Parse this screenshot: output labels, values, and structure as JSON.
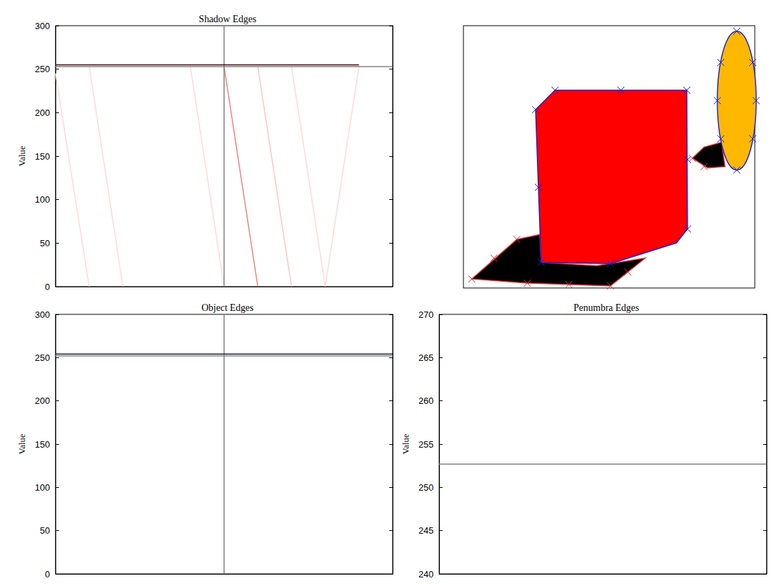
{
  "chart_data": [
    {
      "type": "line",
      "title": "Shadow Edges",
      "y_label": "Value",
      "xlim": [
        0,
        100
      ],
      "ylim": [
        0,
        300
      ],
      "yticks": [
        0,
        50,
        100,
        150,
        200,
        250,
        300
      ],
      "tick_labels": "y",
      "grid": false,
      "series": [
        {
          "color": "#ffd9d9",
          "x": [
            0,
            10
          ],
          "values": [
            245,
            0
          ]
        },
        {
          "color": "#ffd9d9",
          "x": [
            10,
            20
          ],
          "values": [
            253,
            0
          ]
        },
        {
          "color": "#ffd9d9",
          "x": [
            40,
            50
          ],
          "values": [
            253,
            0
          ]
        },
        {
          "color": "#f08080",
          "x": [
            50,
            60
          ],
          "values": [
            253,
            0
          ]
        },
        {
          "color": "#ffc4c4",
          "x": [
            60,
            70
          ],
          "values": [
            253,
            0
          ]
        },
        {
          "color": "#ffd9d9",
          "x": [
            70,
            80
          ],
          "values": [
            253,
            0
          ]
        },
        {
          "color": "#ffd9d9",
          "x": [
            80,
            90
          ],
          "values": [
            0,
            253
          ]
        },
        {
          "color": "#808080",
          "x": [
            0,
            100
          ],
          "values": [
            253,
            253
          ]
        },
        {
          "color": "#808080",
          "x": [
            50,
            50
          ],
          "values": [
            0,
            300
          ]
        },
        {
          "color": "#3a0505",
          "x": [
            0,
            90
          ],
          "values": [
            255,
            255
          ]
        }
      ]
    },
    {
      "type": "line",
      "title": "Object Edges",
      "y_label": "Value",
      "xlim": [
        0,
        100
      ],
      "ylim": [
        0,
        300
      ],
      "yticks": [
        0,
        50,
        100,
        150,
        200,
        250,
        300
      ],
      "tick_labels": "y",
      "grid": false,
      "series": [
        {
          "color": "#808080",
          "x": [
            0,
            100
          ],
          "values": [
            252,
            252
          ]
        },
        {
          "color": "#808080",
          "x": [
            50,
            50
          ],
          "values": [
            0,
            300
          ]
        },
        {
          "color": "#1a1a4d",
          "x": [
            0,
            100
          ],
          "values": [
            254,
            254
          ]
        }
      ]
    },
    {
      "type": "line",
      "title": "Penumbra Edges",
      "y_label": "Value",
      "xlim": [
        0,
        100
      ],
      "ylim": [
        240,
        270
      ],
      "yticks": [
        240,
        245,
        250,
        255,
        260,
        265,
        270
      ],
      "tick_labels": "y",
      "grid": false,
      "series": [
        {
          "color": "#808080",
          "x": [
            0,
            100
          ],
          "values": [
            252.7,
            252.7
          ]
        }
      ]
    }
  ]
}
